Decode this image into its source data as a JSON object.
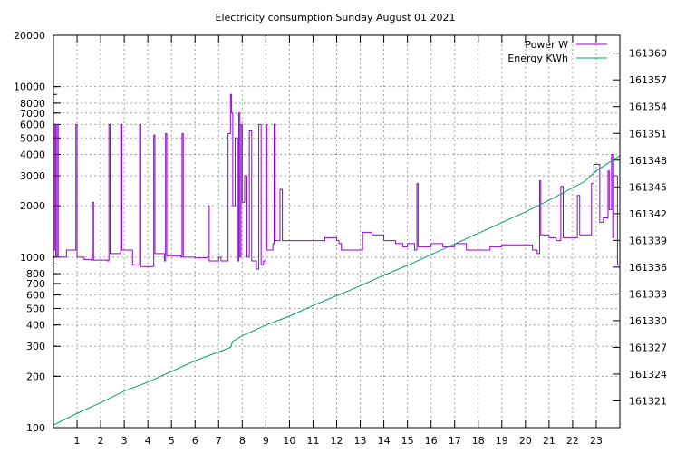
{
  "chart_data": {
    "type": "line",
    "title": "Electricity consumption Sunday August 01 2021",
    "xlabel": "",
    "x_ticks": [
      "1",
      "2",
      "3",
      "4",
      "5",
      "6",
      "7",
      "8",
      "9",
      "10",
      "11",
      "12",
      "13",
      "14",
      "15",
      "16",
      "17",
      "18",
      "19",
      "20",
      "21",
      "22",
      "23"
    ],
    "x_range": [
      0,
      24
    ],
    "y_left_scale": "log",
    "y_left_range": [
      100,
      20000
    ],
    "y_left_ticks": [
      "100",
      "200",
      "300",
      "400",
      "500",
      "600",
      "700",
      "800",
      "1000",
      "2000",
      "3000",
      "4000",
      "5000",
      "6000",
      "7000",
      "8000",
      "10000",
      "20000"
    ],
    "y_right_range": [
      161318,
      161362
    ],
    "y_right_ticks": [
      "161321",
      "161324",
      "161327",
      "161330",
      "161333",
      "161336",
      "161339",
      "161342",
      "161345",
      "161348",
      "161351",
      "161354",
      "161357",
      "161360"
    ],
    "grid": true,
    "legend_position": "top-right",
    "colors": {
      "power": "#9400d3",
      "energy": "#009e73",
      "grid": "#a0a0a0"
    },
    "series": [
      {
        "name": "Power W",
        "axis": "left",
        "style": "steps",
        "points": [
          [
            0.0,
            1100
          ],
          [
            0.05,
            6000
          ],
          [
            0.1,
            1000
          ],
          [
            0.15,
            6000
          ],
          [
            0.2,
            1000
          ],
          [
            0.5,
            1000
          ],
          [
            0.55,
            1100
          ],
          [
            0.9,
            1100
          ],
          [
            0.95,
            6000
          ],
          [
            1.0,
            1000
          ],
          [
            1.3,
            970
          ],
          [
            1.6,
            960
          ],
          [
            1.65,
            2100
          ],
          [
            1.7,
            960
          ],
          [
            2.3,
            950
          ],
          [
            2.35,
            6000
          ],
          [
            2.4,
            1050
          ],
          [
            2.8,
            1050
          ],
          [
            2.85,
            6000
          ],
          [
            2.9,
            1100
          ],
          [
            3.3,
            1100
          ],
          [
            3.35,
            900
          ],
          [
            3.6,
            900
          ],
          [
            3.65,
            6000
          ],
          [
            3.7,
            880
          ],
          [
            4.2,
            880
          ],
          [
            4.25,
            5200
          ],
          [
            4.3,
            1050
          ],
          [
            4.7,
            950
          ],
          [
            4.75,
            5300
          ],
          [
            4.8,
            1020
          ],
          [
            5.4,
            1000
          ],
          [
            5.45,
            5300
          ],
          [
            5.5,
            1000
          ],
          [
            6.0,
            990
          ],
          [
            6.5,
            1000
          ],
          [
            6.55,
            2000
          ],
          [
            6.6,
            950
          ],
          [
            6.9,
            950
          ],
          [
            7.0,
            1000
          ],
          [
            7.1,
            950
          ],
          [
            7.3,
            950
          ],
          [
            7.4,
            5300
          ],
          [
            7.5,
            9000
          ],
          [
            7.55,
            7000
          ],
          [
            7.6,
            2000
          ],
          [
            7.7,
            5000
          ],
          [
            7.8,
            950
          ],
          [
            7.85,
            7000
          ],
          [
            7.9,
            1000
          ],
          [
            7.95,
            6000
          ],
          [
            8.0,
            2100
          ],
          [
            8.1,
            3000
          ],
          [
            8.2,
            1000
          ],
          [
            8.3,
            5500
          ],
          [
            8.4,
            950
          ],
          [
            8.6,
            850
          ],
          [
            8.7,
            6000
          ],
          [
            8.8,
            900
          ],
          [
            8.9,
            950
          ],
          [
            9.0,
            6000
          ],
          [
            9.05,
            1100
          ],
          [
            9.2,
            1100
          ],
          [
            9.3,
            1200
          ],
          [
            9.35,
            6000
          ],
          [
            9.4,
            1250
          ],
          [
            9.5,
            1250
          ],
          [
            9.6,
            2500
          ],
          [
            9.7,
            1250
          ],
          [
            10.5,
            1250
          ],
          [
            11.0,
            1250
          ],
          [
            11.5,
            1300
          ],
          [
            12.0,
            1250
          ],
          [
            12.1,
            1200
          ],
          [
            12.2,
            1100
          ],
          [
            13.0,
            1100
          ],
          [
            13.1,
            1400
          ],
          [
            13.5,
            1350
          ],
          [
            14.0,
            1250
          ],
          [
            14.5,
            1200
          ],
          [
            14.8,
            1150
          ],
          [
            15.0,
            1200
          ],
          [
            15.3,
            1100
          ],
          [
            15.4,
            2700
          ],
          [
            15.45,
            1150
          ],
          [
            16.0,
            1200
          ],
          [
            16.5,
            1150
          ],
          [
            17.0,
            1200
          ],
          [
            17.5,
            1100
          ],
          [
            18.0,
            1100
          ],
          [
            18.5,
            1150
          ],
          [
            19.0,
            1180
          ],
          [
            19.5,
            1180
          ],
          [
            20.0,
            1180
          ],
          [
            20.3,
            1100
          ],
          [
            20.5,
            1050
          ],
          [
            20.6,
            2800
          ],
          [
            20.65,
            1350
          ],
          [
            21.0,
            1300
          ],
          [
            21.3,
            1250
          ],
          [
            21.5,
            2600
          ],
          [
            21.6,
            1300
          ],
          [
            22.0,
            1300
          ],
          [
            22.2,
            2300
          ],
          [
            22.3,
            1350
          ],
          [
            22.5,
            1350
          ],
          [
            22.8,
            2700
          ],
          [
            22.9,
            3500
          ],
          [
            23.1,
            3500
          ],
          [
            23.15,
            1600
          ],
          [
            23.3,
            1700
          ],
          [
            23.4,
            1700
          ],
          [
            23.5,
            3200
          ],
          [
            23.55,
            1900
          ],
          [
            23.65,
            4000
          ],
          [
            23.7,
            1300
          ],
          [
            23.75,
            3000
          ],
          [
            23.9,
            900
          ],
          [
            24.0,
            700
          ]
        ]
      },
      {
        "name": "Energy KWh",
        "axis": "right",
        "style": "line",
        "points": [
          [
            0,
            161318.3
          ],
          [
            1,
            161319.6
          ],
          [
            2,
            161320.8
          ],
          [
            3,
            161322.1
          ],
          [
            4,
            161323.1
          ],
          [
            5,
            161324.3
          ],
          [
            6,
            161325.5
          ],
          [
            7,
            161326.5
          ],
          [
            7.5,
            161327.0
          ],
          [
            7.6,
            161327.7
          ],
          [
            8,
            161328.3
          ],
          [
            9,
            161329.5
          ],
          [
            10,
            161330.5
          ],
          [
            11,
            161331.7
          ],
          [
            12,
            161332.8
          ],
          [
            13,
            161333.9
          ],
          [
            14,
            161335.1
          ],
          [
            15,
            161336.2
          ],
          [
            16,
            161337.4
          ],
          [
            17,
            161338.6
          ],
          [
            18,
            161339.8
          ],
          [
            19,
            161341.0
          ],
          [
            20,
            161342.2
          ],
          [
            21,
            161343.5
          ],
          [
            22,
            161344.9
          ],
          [
            22.5,
            161345.6
          ],
          [
            23,
            161346.8
          ],
          [
            24,
            161348.5
          ]
        ]
      }
    ]
  }
}
